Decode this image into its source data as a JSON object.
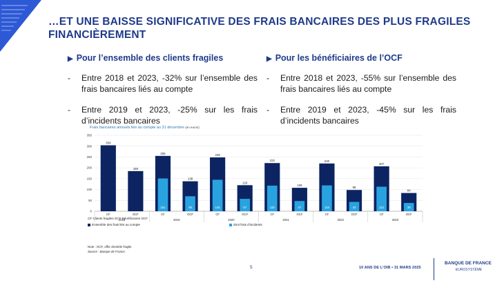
{
  "title": "…ET UNE BAISSE SIGNIFICATIVE DES FRAIS BANCAIRES DES PLUS FRAGILES FINANCIÈREMENT",
  "left_column": {
    "heading": "Pour l’ensemble des clients fragiles",
    "bullets": [
      "Entre 2018 et 2023, -32% sur l’ensemble des frais bancaires liés au compte",
      "Entre 2019 et 2023, -25% sur les frais d’incidents bancaires"
    ]
  },
  "right_column": {
    "heading": "Pour les bénéficiaires de l’OCF",
    "bullets": [
      "Entre 2018 et 2023, -55% sur l’ensemble des frais bancaires liés au compte",
      "Entre 2019 et 2023, -45% sur les frais d’incidents bancaires"
    ]
  },
  "bullet_dash": "-",
  "colors": {
    "title": "#1f3a8a",
    "dark_bar": "#0c2461",
    "light_bar": "#29a3e0",
    "chart_title": "#2b7bb9"
  },
  "chart_data": {
    "type": "bar",
    "title": "Frais bancaires annuels liés au compte au 31 décembre",
    "unit": "(en euros)",
    "years": [
      "2018",
      "2019",
      "2020",
      "2021",
      "2022",
      "2023"
    ],
    "categories": [
      "CF",
      "OCF",
      "CF",
      "OCF",
      "CF",
      "OCF",
      "CF",
      "OCF",
      "CF",
      "OCF",
      "CF",
      "OCF"
    ],
    "ylim": [
      0,
      350
    ],
    "yticks": [
      0,
      50,
      100,
      150,
      200,
      250,
      300,
      350
    ],
    "series": [
      {
        "name": "Ensemble des frais liés au compte",
        "values": [
          304,
          185,
          255,
          138,
          248,
          120,
          222,
          108,
          220,
          98,
          207,
          84
        ]
      },
      {
        "name": "dont frais d'incidents",
        "values": [
          null,
          null,
          151,
          69,
          145,
          57,
          118,
          47,
          119,
          43,
          113,
          38
        ]
      }
    ],
    "legend_codes": "CF Clients fragiles   OCF Bénéficiaires OCF"
  },
  "note": "Note : OCF, offre clientèle fragile.",
  "source": "Source : Banque de France.",
  "page_number": "5",
  "event_label": "10 ANS DE L’OIB • 31 MARS 2025",
  "brand": {
    "name": "BANQUE DE FRANCE",
    "tagline": "EUROSYSTÈME"
  }
}
